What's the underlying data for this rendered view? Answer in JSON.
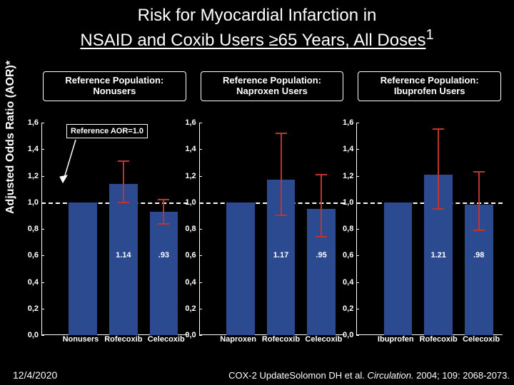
{
  "title_line1": "Risk for Myocardial Infarction in",
  "title_line2_a": "NSAID and Coxib Users ≥65 Years, All Doses",
  "title_sup": "1",
  "ylabel": "Adjusted Odds Ratio (AOR)*",
  "ylim": [
    0.0,
    1.6
  ],
  "yticks": [
    0.0,
    0.2,
    0.4,
    0.6,
    0.8,
    1.0,
    1.2,
    1.4,
    1.6
  ],
  "ytick_labels": [
    "0,0",
    "0,2",
    "0,4",
    "0,6",
    "0,8",
    "1,0",
    "1,2",
    "1,4",
    "1,6"
  ],
  "ref_value": 1.0,
  "ref_note": "Reference AOR=1.0",
  "bar_color": "#2b4a8f",
  "err_color": "#c0342c",
  "panels": [
    {
      "header": "Reference Population: Nonusers",
      "categories": [
        "Nonusers",
        "Rofecoxib",
        "Celecoxib"
      ],
      "bars": [
        {
          "aor": 1.0,
          "lo": null,
          "hi": null,
          "label": null,
          "is_ref": true
        },
        {
          "aor": 1.14,
          "lo": 1.0,
          "hi": 1.31,
          "label": "1.14"
        },
        {
          "aor": 0.93,
          "lo": 0.84,
          "hi": 1.02,
          "label": ".93"
        }
      ]
    },
    {
      "header": "Reference Population: Naproxen Users",
      "categories": [
        "Naproxen",
        "Rofecoxib",
        "Celecoxib"
      ],
      "bars": [
        {
          "aor": 1.0,
          "lo": null,
          "hi": null,
          "label": null,
          "is_ref": true
        },
        {
          "aor": 1.17,
          "lo": 0.9,
          "hi": 1.52,
          "label": "1.17"
        },
        {
          "aor": 0.95,
          "lo": 0.74,
          "hi": 1.21,
          "label": ".95"
        }
      ]
    },
    {
      "header": "Reference Population: Ibuprofen Users",
      "categories": [
        "Ibuprofen",
        "Rofecoxib",
        "Celecoxib"
      ],
      "bars": [
        {
          "aor": 1.0,
          "lo": null,
          "hi": null,
          "label": null,
          "is_ref": true
        },
        {
          "aor": 1.21,
          "lo": 0.95,
          "hi": 1.55,
          "label": "1.21"
        },
        {
          "aor": 0.98,
          "lo": 0.79,
          "hi": 1.23,
          "label": ".98"
        }
      ]
    }
  ],
  "footer_date": "12/4/2020",
  "footer_cox": "COX-2 Update",
  "footer_cite_a": "Solomon DH et al. ",
  "footer_cite_i": "Circulation.",
  "footer_cite_b": " 2004; 109: 2068-2073."
}
